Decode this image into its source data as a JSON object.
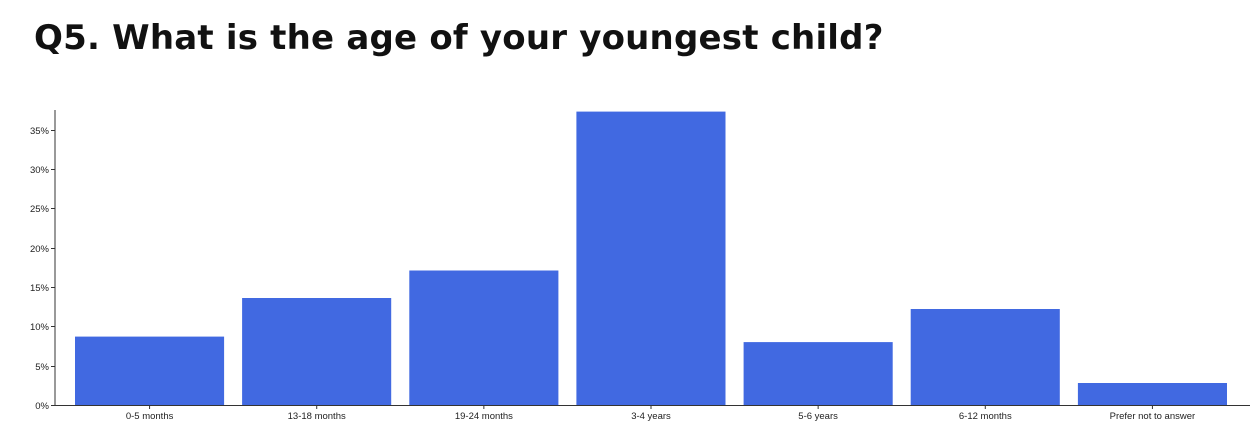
{
  "title": "Q5. What is the age of your youngest child?",
  "chart_data": {
    "type": "bar",
    "categories": [
      "0-5 months",
      "13-18 months",
      "19-24 months",
      "3-4 years",
      "5-6 years",
      "6-12 months",
      "Prefer not to answer"
    ],
    "values": [
      8.7,
      13.6,
      17.1,
      37.3,
      8.0,
      12.2,
      2.8
    ],
    "ylim": [
      0,
      37.5
    ],
    "yticks": [
      0,
      5,
      10,
      15,
      20,
      25,
      30,
      35
    ],
    "ytick_labels": [
      "0%",
      "5%",
      "10%",
      "15%",
      "20%",
      "25%",
      "30%",
      "35%"
    ],
    "bar_color": "#4169E1",
    "grid": false,
    "legend": "none"
  }
}
